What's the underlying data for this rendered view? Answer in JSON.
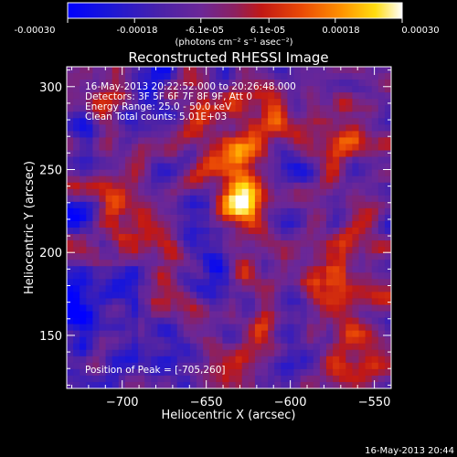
{
  "chart_data": {
    "type": "heatmap",
    "title": "Reconstructed RHESSI Image",
    "xlabel": "Heliocentric X (arcsec)",
    "ylabel": "Heliocentric Y (arcsec)",
    "xlim": [
      -733,
      -540
    ],
    "ylim": [
      118,
      312
    ],
    "x_ticks": [
      -700,
      -650,
      -600,
      -550
    ],
    "y_ticks": [
      150,
      200,
      250,
      300
    ],
    "x_tick_labels": [
      "−700",
      "−650",
      "−600",
      "−550"
    ],
    "y_tick_labels": [
      "150",
      "200",
      "250",
      "300"
    ],
    "colormap": "rainbow-ish blue-purple-red-orange-yellow-white",
    "colorbar": {
      "range": [
        -0.0003,
        0.0003
      ],
      "tick_labels": [
        "-0.00030",
        "-0.00018",
        "-6.1e-05",
        "6.1e-05",
        "0.00018",
        "0.00030"
      ],
      "unit_text": "(photons cm⁻² s⁻¹ asec⁻²)"
    },
    "peak": {
      "x": -705,
      "y": 260
    },
    "annotations": {
      "time_range": "16-May-2013 20:22:52.000 to 20:26:48.000",
      "detectors": "Detectors: 3F 5F 6F 7F 8F 9F, Att 0",
      "energy": "Energy Range: 25.0 - 50.0 keV",
      "algorithm": "Clean    Total counts: 5.01E+03",
      "peak_text": "Position of Peak = [-705,260]"
    },
    "colors": {
      "background": "#000000",
      "text": "#ffffff",
      "stops": [
        "#0000ff",
        "#3b1fa8",
        "#5a2aa0",
        "#7a2b8a",
        "#c0201a",
        "#e8400a",
        "#ff8a00",
        "#ffd400",
        "#ffffff"
      ]
    }
  },
  "footer": {
    "timestamp": "16-May-2013 20:44"
  }
}
